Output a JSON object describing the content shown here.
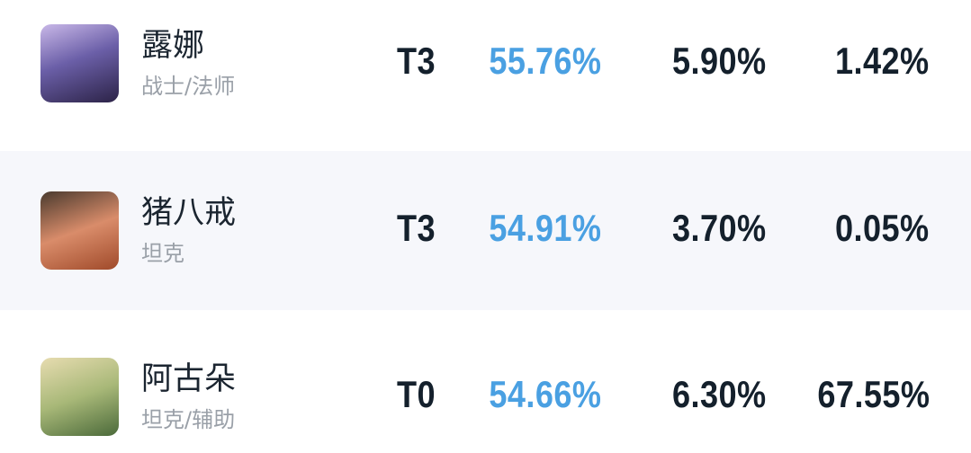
{
  "rows": [
    {
      "name": "露娜",
      "role": "战士/法师",
      "tier": "T3",
      "win_rate": "55.76%",
      "pick_rate": "5.90%",
      "ban_rate": "1.42%"
    },
    {
      "name": "猪八戒",
      "role": "坦克",
      "tier": "T3",
      "win_rate": "54.91%",
      "pick_rate": "3.70%",
      "ban_rate": "0.05%"
    },
    {
      "name": "阿古朵",
      "role": "坦克/辅助",
      "tier": "T0",
      "win_rate": "54.66%",
      "pick_rate": "6.30%",
      "ban_rate": "67.55%"
    }
  ]
}
